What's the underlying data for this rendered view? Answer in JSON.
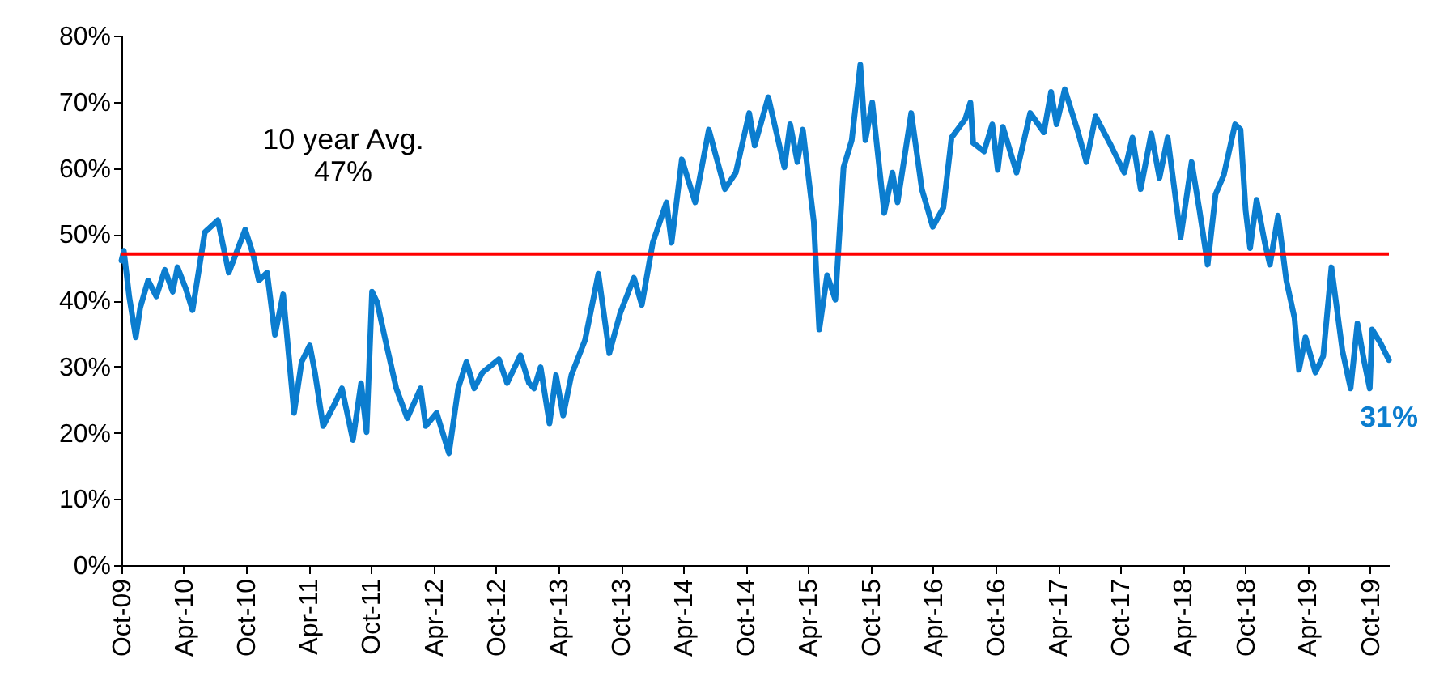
{
  "chart_data": {
    "type": "line",
    "x": [
      "2009-10-01",
      "2009-10-08",
      "2009-10-24",
      "2009-11-12",
      "2009-11-25",
      "2009-12-18",
      "2010-01-11",
      "2010-02-05",
      "2010-02-28",
      "2010-03-14",
      "2010-04-07",
      "2010-04-27",
      "2010-06-02",
      "2010-07-10",
      "2010-08-11",
      "2010-09-28",
      "2010-10-21",
      "2010-11-07",
      "2010-12-01",
      "2010-12-24",
      "2011-01-17",
      "2011-02-18",
      "2011-03-12",
      "2011-04-05",
      "2011-04-20",
      "2011-05-14",
      "2011-06-15",
      "2011-07-08",
      "2011-08-09",
      "2011-09-02",
      "2011-09-18",
      "2011-10-04",
      "2011-10-19",
      "2011-11-12",
      "2011-12-14",
      "2012-01-15",
      "2012-02-23",
      "2012-03-09",
      "2012-04-10",
      "2012-05-16",
      "2012-06-12",
      "2012-07-06",
      "2012-07-29",
      "2012-08-22",
      "2012-10-09",
      "2012-11-02",
      "2012-12-11",
      "2013-01-05",
      "2013-01-20",
      "2013-02-08",
      "2013-03-06",
      "2013-03-25",
      "2013-04-15",
      "2013-05-09",
      "2013-06-18",
      "2013-07-27",
      "2013-08-28",
      "2013-09-29",
      "2013-11-08",
      "2013-12-01",
      "2014-01-02",
      "2014-02-11",
      "2014-02-26",
      "2014-03-28",
      "2014-05-06",
      "2014-06-15",
      "2014-08-01",
      "2014-09-02",
      "2014-10-11",
      "2014-10-27",
      "2014-12-06",
      "2015-01-22",
      "2015-02-08",
      "2015-03-01",
      "2015-03-17",
      "2015-04-18",
      "2015-05-04",
      "2015-05-27",
      "2015-06-20",
      "2015-07-14",
      "2015-08-07",
      "2015-09-01",
      "2015-09-16",
      "2015-10-06",
      "2015-11-10",
      "2015-12-04",
      "2015-12-19",
      "2016-01-28",
      "2016-02-28",
      "2016-03-31",
      "2016-05-01",
      "2016-05-25",
      "2016-07-04",
      "2016-07-19",
      "2016-07-27",
      "2016-08-28",
      "2016-09-21",
      "2016-10-07",
      "2016-10-22",
      "2016-12-01",
      "2017-01-10",
      "2017-02-19",
      "2017-03-12",
      "2017-03-28",
      "2017-04-21",
      "2017-05-30",
      "2017-06-23",
      "2017-07-20",
      "2017-09-03",
      "2017-10-12",
      "2017-11-05",
      "2017-11-29",
      "2017-12-30",
      "2018-01-23",
      "2018-02-16",
      "2018-03-26",
      "2018-04-27",
      "2018-05-20",
      "2018-06-13",
      "2018-07-06",
      "2018-07-30",
      "2018-09-01",
      "2018-09-17",
      "2018-10-02",
      "2018-10-15",
      "2018-11-03",
      "2018-11-27",
      "2018-12-12",
      "2019-01-05",
      "2019-01-29",
      "2019-02-22",
      "2019-03-07",
      "2019-03-26",
      "2019-04-24",
      "2019-05-17",
      "2019-06-10",
      "2019-07-12",
      "2019-08-05",
      "2019-08-25",
      "2019-09-14",
      "2019-09-30",
      "2019-10-07",
      "2019-10-31",
      "2019-11-25"
    ],
    "series": [
      {
        "color": "#0b7dcf",
        "values": [
          46,
          47.5,
          40.5,
          34.4,
          38.9,
          43,
          40.6,
          44.6,
          41.3,
          45,
          41.8,
          38.5,
          50.3,
          52.1,
          44.2,
          50.7,
          47,
          43,
          44.2,
          34.8,
          40.9,
          23,
          30.7,
          33.2,
          29.1,
          21,
          24.2,
          26.7,
          18.9,
          27.5,
          20.1,
          41.3,
          39.7,
          34,
          26.7,
          22.2,
          26.7,
          21,
          23,
          16.9,
          26.7,
          30.7,
          26.7,
          29.1,
          31.1,
          27.5,
          31.7,
          27.5,
          26.7,
          29.9,
          21.4,
          28.7,
          22.6,
          28.7,
          34,
          44,
          32,
          38.1,
          43.4,
          39.3,
          48.7,
          54.8,
          48.7,
          61.3,
          54.8,
          65.8,
          56.8,
          59.3,
          68.3,
          63.4,
          70.7,
          60.1,
          66.6,
          60.9,
          65.8,
          51.9,
          35.6,
          43.8,
          40.1,
          60.1,
          64.2,
          75.6,
          64.2,
          69.9,
          53.2,
          59.3,
          54.8,
          68.3,
          56.8,
          51.1,
          54,
          64.6,
          67.4,
          69.9,
          63.8,
          62.5,
          66.6,
          59.7,
          66.2,
          59.3,
          68.3,
          65.4,
          71.5,
          66.6,
          71.9,
          65.4,
          60.9,
          67.8,
          63.4,
          59.3,
          64.6,
          56.8,
          65.2,
          58.5,
          64.6,
          49.5,
          60.9,
          53.6,
          45.4,
          56,
          58.9,
          66.6,
          65.8,
          53.6,
          47.9,
          55.2,
          48.7,
          45.4,
          52.8,
          43,
          37.3,
          29.5,
          34.4,
          29.1,
          31.6,
          45,
          32.4,
          26.7,
          36.5,
          30.7,
          26.7,
          35.6,
          33.6,
          31
        ]
      }
    ],
    "xlim": [
      "2009-10-01",
      "2019-11-25"
    ],
    "xticks": [
      {
        "value": "2009-10-01",
        "label": "Oct-09"
      },
      {
        "value": "2010-04-01",
        "label": "Apr-10"
      },
      {
        "value": "2010-10-01",
        "label": "Oct-10"
      },
      {
        "value": "2011-04-01",
        "label": "Apr-11"
      },
      {
        "value": "2011-10-01",
        "label": "Oct-11"
      },
      {
        "value": "2012-04-01",
        "label": "Apr-12"
      },
      {
        "value": "2012-10-01",
        "label": "Oct-12"
      },
      {
        "value": "2013-04-01",
        "label": "Apr-13"
      },
      {
        "value": "2013-10-01",
        "label": "Oct-13"
      },
      {
        "value": "2014-04-01",
        "label": "Apr-14"
      },
      {
        "value": "2014-10-01",
        "label": "Oct-14"
      },
      {
        "value": "2015-04-01",
        "label": "Apr-15"
      },
      {
        "value": "2015-10-01",
        "label": "Oct-15"
      },
      {
        "value": "2016-04-01",
        "label": "Apr-16"
      },
      {
        "value": "2016-10-01",
        "label": "Oct-16"
      },
      {
        "value": "2017-04-01",
        "label": "Apr-17"
      },
      {
        "value": "2017-10-01",
        "label": "Oct-17"
      },
      {
        "value": "2018-04-01",
        "label": "Apr-18"
      },
      {
        "value": "2018-10-01",
        "label": "Oct-18"
      },
      {
        "value": "2019-04-01",
        "label": "Apr-19"
      },
      {
        "value": "2019-10-01",
        "label": "Oct-19"
      }
    ],
    "ylim": [
      0,
      80
    ],
    "yticks": [
      {
        "value": 0,
        "label": "0%"
      },
      {
        "value": 10,
        "label": "10%"
      },
      {
        "value": 20,
        "label": "20%"
      },
      {
        "value": 30,
        "label": "30%"
      },
      {
        "value": 40,
        "label": "40%"
      },
      {
        "value": 50,
        "label": "50%"
      },
      {
        "value": 60,
        "label": "60%"
      },
      {
        "value": 70,
        "label": "70%"
      },
      {
        "value": 80,
        "label": "80%"
      }
    ],
    "ref_lines": [
      {
        "axis": "y",
        "value": 47,
        "label": "10 year Avg.\n47%",
        "color": "#ff0000"
      }
    ],
    "annotations": [
      {
        "text": "31%",
        "x": "2019-11-25",
        "y": 31
      }
    ],
    "grid": false,
    "marker": "none",
    "line_style": "solid"
  }
}
